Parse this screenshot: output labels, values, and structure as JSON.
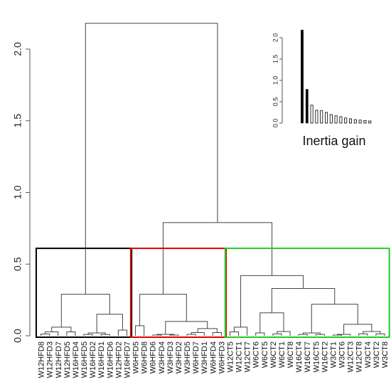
{
  "chart_data": [
    {
      "type": "dendrogram",
      "ylim": [
        0,
        2.25
      ],
      "yticks": [
        "0.0",
        "0.5",
        "1.0",
        "1.5",
        "2.0"
      ],
      "leaves": [
        "W12HFD8",
        "W12HFD3",
        "W12HFD7",
        "W12HFD5",
        "W16HFD4",
        "W16HFD5",
        "W16HFD2",
        "W16HFD1",
        "W16HFD6",
        "W12HFD2",
        "W16HFD7",
        "W6HFD5",
        "W6HFD8",
        "W6HFD6",
        "W3HFD4",
        "W3HFD3",
        "W3HFD2",
        "W3HFD5",
        "W6HFD7",
        "W3HFD1",
        "W6HFD4",
        "W6HFD3",
        "W12CT5",
        "W12CT1",
        "W12CT7",
        "W6CT6",
        "W6CT5",
        "W6CT2",
        "W6CT1",
        "W6CT8",
        "W16CT4",
        "W16CT7",
        "W16CT5",
        "W16CT2",
        "W3CT1",
        "W3CT6",
        "W12CT3",
        "W12CT8",
        "W3CT4",
        "W3CT2",
        "W3CT8"
      ],
      "root_height": 2.18,
      "cluster_heights": [
        0.79,
        0.42,
        0.29,
        0.29,
        0.15
      ],
      "cut_height": 0.61,
      "clusters": [
        {
          "color": "#000000",
          "leaf_range": [
            0,
            10
          ]
        },
        {
          "color": "#e00000",
          "leaf_range": [
            11,
            21
          ]
        },
        {
          "color": "#22cc22",
          "leaf_range": [
            22,
            40
          ]
        }
      ]
    },
    {
      "type": "bar",
      "title": "Inertia gain",
      "yticks": [
        "0.0",
        "0.5",
        "1.0",
        "1.5",
        "2.0"
      ],
      "ylim": [
        0,
        2.25
      ],
      "values": [
        2.18,
        0.79,
        0.42,
        0.3,
        0.29,
        0.25,
        0.2,
        0.17,
        0.15,
        0.12,
        0.1,
        0.08,
        0.07,
        0.06,
        0.05
      ]
    }
  ]
}
